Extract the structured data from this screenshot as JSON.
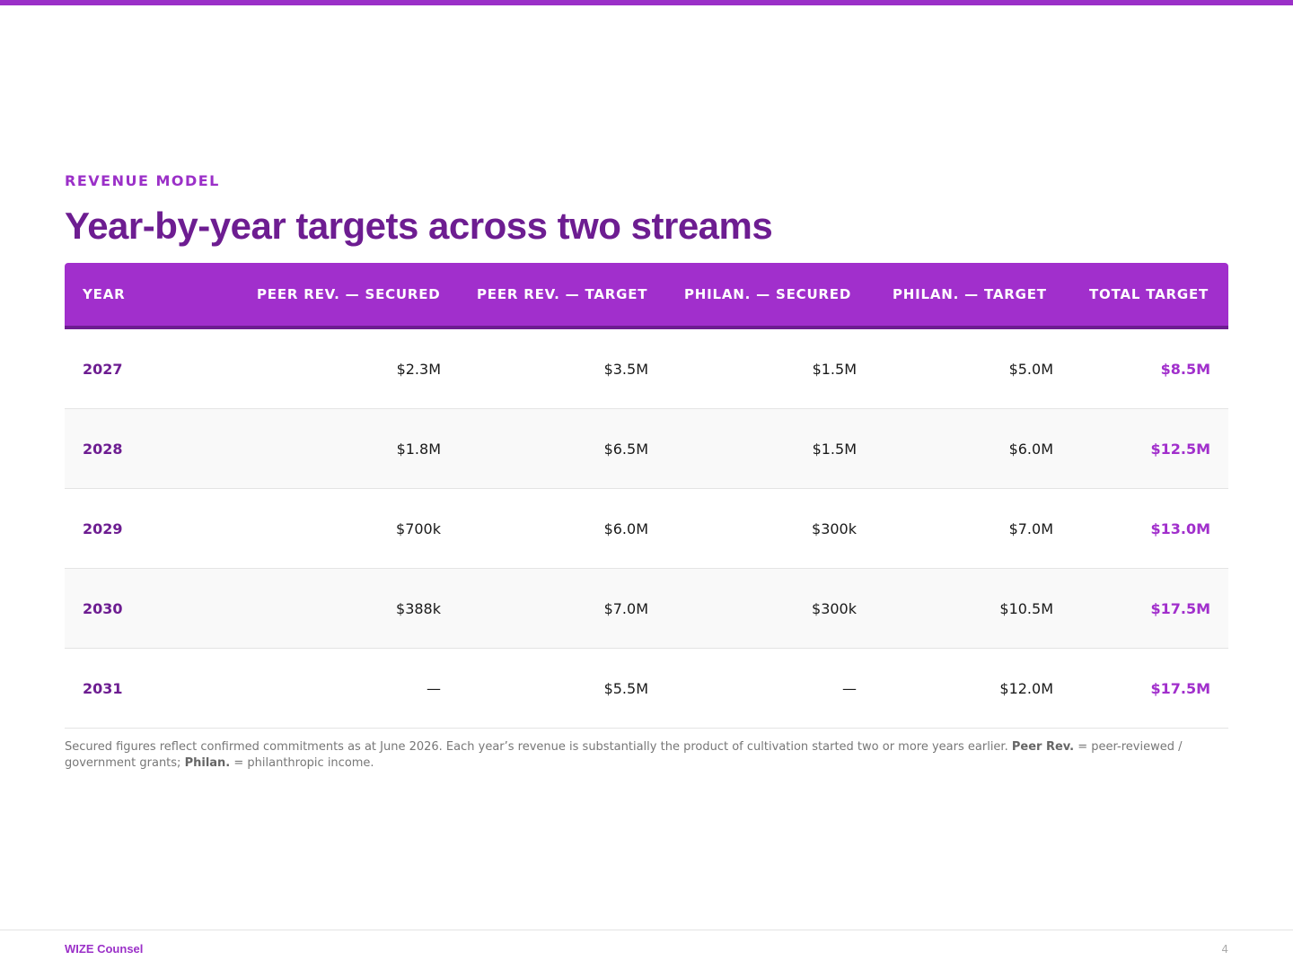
{
  "header": {
    "eyebrow": "REVENUE MODEL",
    "title": "Year-by-year targets across two streams"
  },
  "table": {
    "columns": [
      "YEAR",
      "PEER REV. — SECURED",
      "PEER REV. — TARGET",
      "PHILAN. — SECURED",
      "PHILAN. — TARGET",
      "TOTAL TARGET"
    ],
    "rows": [
      {
        "year": "2027",
        "peer_secured": "$2.3M",
        "peer_target": "$3.5M",
        "philan_secured": "$1.5M",
        "philan_target": "$5.0M",
        "total": "$8.5M"
      },
      {
        "year": "2028",
        "peer_secured": "$1.8M",
        "peer_target": "$6.5M",
        "philan_secured": "$1.5M",
        "philan_target": "$6.0M",
        "total": "$12.5M"
      },
      {
        "year": "2029",
        "peer_secured": "$700k",
        "peer_target": "$6.0M",
        "philan_secured": "$300k",
        "philan_target": "$7.0M",
        "total": "$13.0M"
      },
      {
        "year": "2030",
        "peer_secured": "$388k",
        "peer_target": "$7.0M",
        "philan_secured": "$300k",
        "philan_target": "$10.5M",
        "total": "$17.5M"
      },
      {
        "year": "2031",
        "peer_secured": "—",
        "peer_target": "$5.5M",
        "philan_secured": "—",
        "philan_target": "$12.0M",
        "total": "$17.5M"
      }
    ]
  },
  "footnote": {
    "text_1": "Secured figures reflect confirmed commitments as at June 2026. Each year’s revenue is substantially the product of cultivation started two or more years earlier. ",
    "term_1": "Peer Rev.",
    "text_2": " = peer-reviewed / government grants; ",
    "term_2": "Philan.",
    "text_3": " = philanthropic income."
  },
  "footer": {
    "brand": "WIZE Counsel",
    "page_number": "4"
  },
  "colors": {
    "accent": "#9b30c8",
    "header_bg": "#a12fcc",
    "title": "#6d1d91"
  }
}
